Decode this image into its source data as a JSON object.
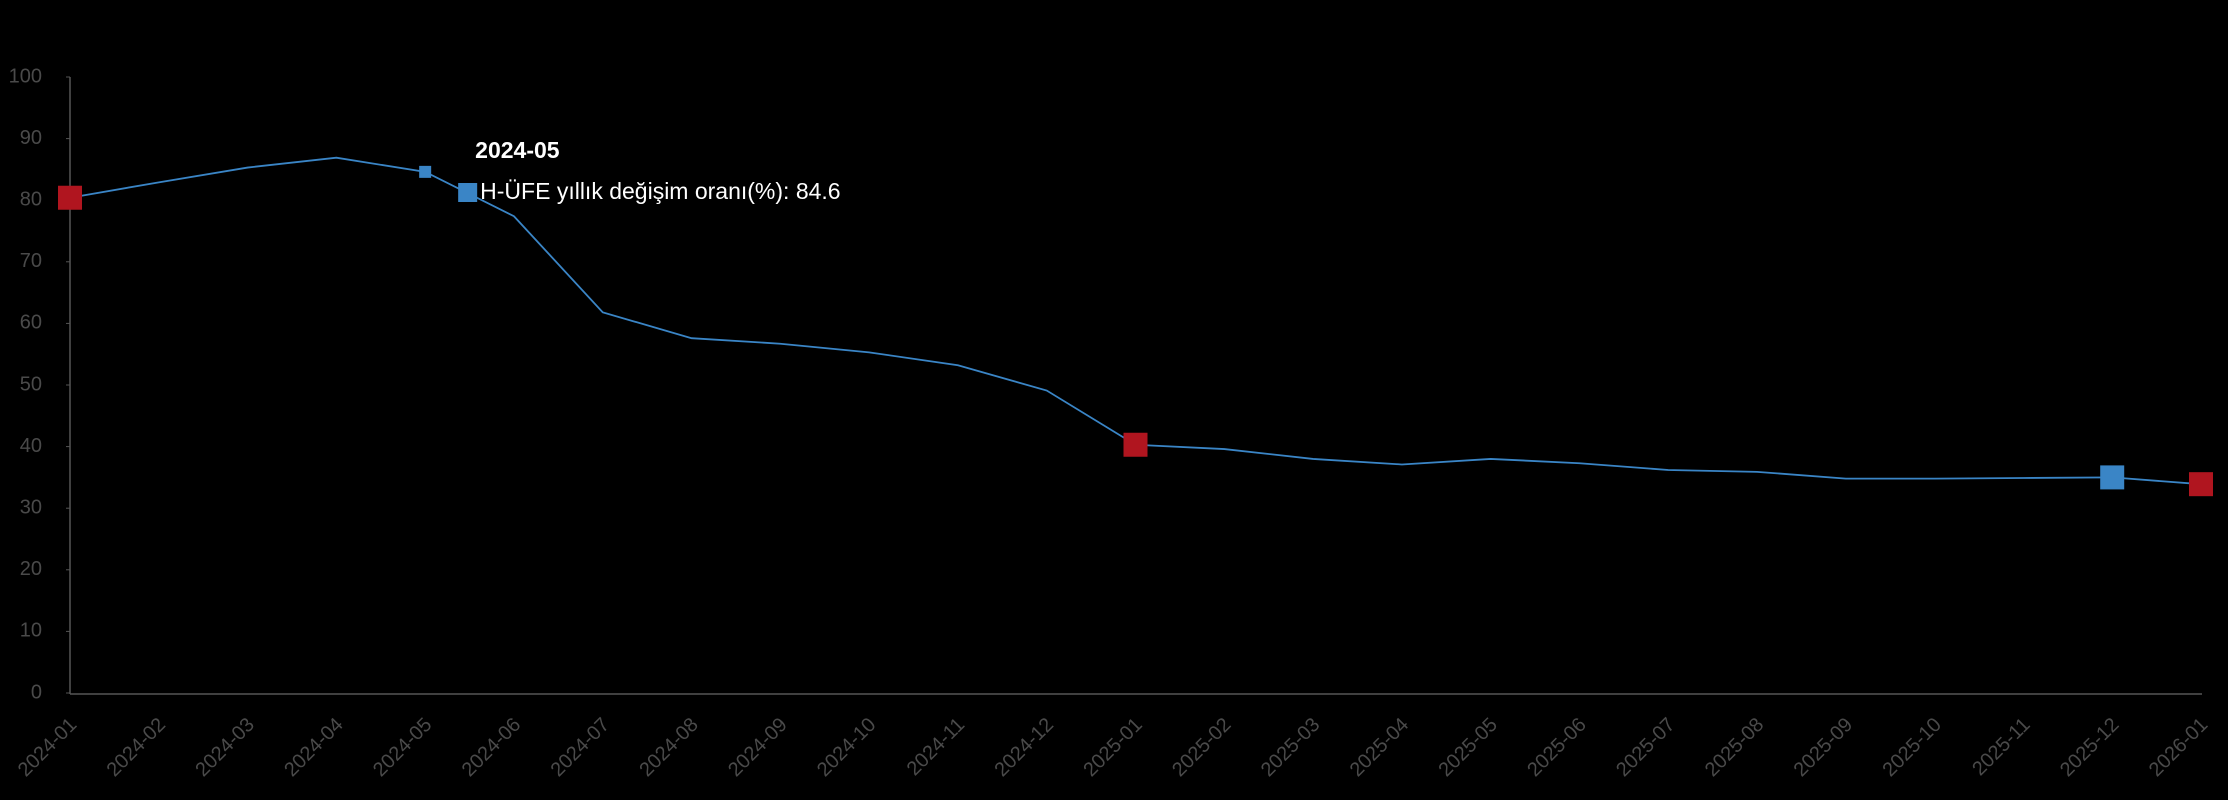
{
  "chart_data": {
    "type": "line",
    "x": [
      "2024-01",
      "2024-02",
      "2024-03",
      "2024-04",
      "2024-05",
      "2024-06",
      "2024-07",
      "2024-08",
      "2024-09",
      "2024-10",
      "2024-11",
      "2024-12",
      "2025-01",
      "2025-02",
      "2025-03",
      "2025-04",
      "2025-05",
      "2025-06",
      "2025-07",
      "2025-08",
      "2025-09",
      "2025-10",
      "2025-11",
      "2025-12",
      "2026-01"
    ],
    "values": [
      80.4,
      82.9,
      85.3,
      86.9,
      84.6,
      77.4,
      61.8,
      57.6,
      56.7,
      55.3,
      53.2,
      49.1,
      40.3,
      39.6,
      38.0,
      37.1,
      38.0,
      37.3,
      36.2,
      35.9,
      34.8,
      34.8,
      34.9,
      35.0,
      33.9
    ],
    "color": "#3a85c6",
    "ylim": [
      0,
      100
    ],
    "yticks": [
      0,
      10,
      20,
      30,
      40,
      50,
      60,
      70,
      80,
      90,
      100
    ],
    "grid": false,
    "marker_points": [
      {
        "x": "2024-01",
        "color": "#b0151f"
      },
      {
        "x": "2025-01",
        "color": "#b0151f"
      },
      {
        "x": "2026-01",
        "color": "#b0151f"
      },
      {
        "x": "2025-12",
        "color": "#3a85c6"
      }
    ],
    "tooltip": {
      "x": "2024-05",
      "title": "2024-05",
      "text": "H-ÜFE yıllık değişim oranı(%): 84.6"
    }
  }
}
